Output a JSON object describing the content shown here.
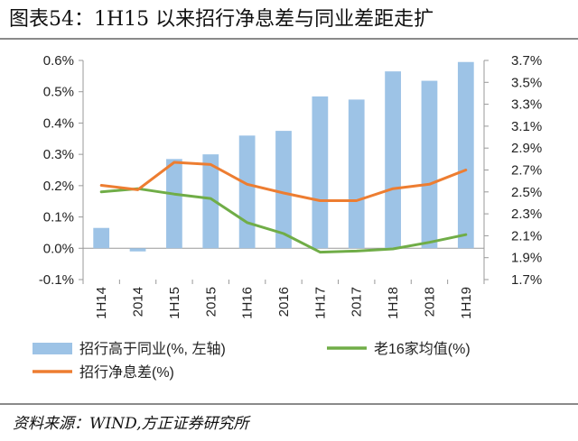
{
  "header": {
    "title": "图表54：1H15 以来招行净息差与同业差距走扩"
  },
  "footer": {
    "source": "资料来源：WIND,方正证券研究所"
  },
  "colors": {
    "bars": "#9DC3E6",
    "navy_line": "#70AD47",
    "nim_line": "#ED7D31",
    "rule": "#8a8a8a"
  },
  "chart_data": {
    "type": "bar+line",
    "categories": [
      "1H14",
      "2014",
      "1H15",
      "2015",
      "1H16",
      "2016",
      "1H17",
      "2017",
      "1H18",
      "2018",
      "1H19"
    ],
    "left_axis": {
      "ylim": [
        -0.1,
        0.6
      ],
      "ticks": [
        -0.1,
        0.0,
        0.1,
        0.2,
        0.3,
        0.4,
        0.5,
        0.6
      ],
      "tick_labels": [
        "-0.1%",
        "0.0%",
        "0.1%",
        "0.2%",
        "0.3%",
        "0.4%",
        "0.5%",
        "0.6%"
      ]
    },
    "right_axis": {
      "ylim": [
        1.7,
        3.7
      ],
      "ticks": [
        1.7,
        1.9,
        2.1,
        2.3,
        2.5,
        2.7,
        2.9,
        3.1,
        3.3,
        3.5,
        3.7
      ],
      "tick_labels": [
        "1.7%",
        "1.9%",
        "2.1%",
        "2.3%",
        "2.5%",
        "2.7%",
        "2.9%",
        "3.1%",
        "3.3%",
        "3.5%",
        "3.7%"
      ]
    },
    "series": [
      {
        "name": "招行高于同业(%, 左轴)",
        "kind": "bar",
        "axis": "left",
        "color": "#9DC3E6",
        "values": [
          0.065,
          -0.01,
          0.285,
          0.3,
          0.36,
          0.375,
          0.485,
          0.475,
          0.565,
          0.535,
          0.595
        ]
      },
      {
        "name": "老16家均值(%)",
        "kind": "line",
        "axis": "right",
        "color": "#70AD47",
        "values": [
          2.5,
          2.53,
          2.48,
          2.44,
          2.22,
          2.12,
          1.95,
          1.96,
          1.98,
          2.04,
          2.11
        ]
      },
      {
        "name": "招行净息差(%)",
        "kind": "line",
        "axis": "right",
        "color": "#ED7D31",
        "values": [
          2.56,
          2.52,
          2.77,
          2.75,
          2.57,
          2.49,
          2.42,
          2.42,
          2.53,
          2.57,
          2.7
        ]
      }
    ],
    "legend_position": "bottom"
  }
}
